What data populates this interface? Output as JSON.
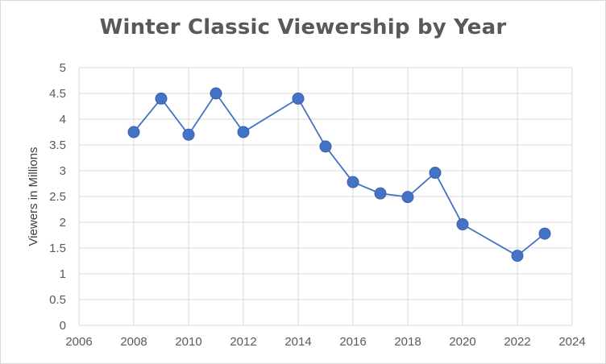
{
  "chart_data": {
    "type": "scatter",
    "title": "Winter Classic Viewership by Year",
    "xlabel": "",
    "ylabel": "Viewers in Millions",
    "xlim": [
      2006,
      2024
    ],
    "ylim": [
      0,
      5
    ],
    "x_ticks": [
      "2006",
      "2008",
      "2010",
      "2012",
      "2014",
      "2016",
      "2018",
      "2020",
      "2022",
      "2024"
    ],
    "y_ticks": [
      "0",
      "0.5",
      "1",
      "1.5",
      "2",
      "2.5",
      "3",
      "3.5",
      "4",
      "4.5",
      "5"
    ],
    "grid": true,
    "legend": "none",
    "markers": true,
    "lines": true,
    "color": "#4472c4",
    "series": [
      {
        "x": [
          2008,
          2009,
          2010,
          2011,
          2012,
          2014,
          2015,
          2016,
          2017,
          2018,
          2019,
          2020,
          2022,
          2023
        ],
        "y": [
          3.75,
          4.4,
          3.7,
          4.5,
          3.75,
          4.4,
          3.47,
          2.78,
          2.56,
          2.49,
          2.96,
          1.96,
          1.35,
          1.78
        ]
      }
    ]
  }
}
